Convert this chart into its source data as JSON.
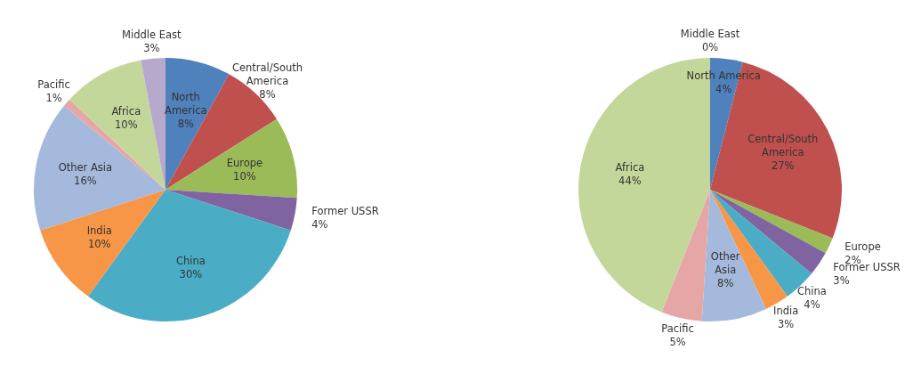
{
  "chart_data": [
    {
      "type": "pie",
      "categories": [
        "North America",
        "Central/South America",
        "Europe",
        "Former USSR",
        "China",
        "India",
        "Other Asia",
        "Pacific",
        "Africa",
        "Middle East"
      ],
      "values": [
        8,
        8,
        10,
        4,
        30,
        10,
        16,
        1,
        10,
        3
      ],
      "value_labels": [
        "8%",
        "8%",
        "10%",
        "4%",
        "30%",
        "10%",
        "16%",
        "1%",
        "10%",
        "3%"
      ],
      "colors": [
        "#4f81bd",
        "#c0504d",
        "#9bbb59",
        "#8064a2",
        "#4bacc6",
        "#f79646",
        "#a5b9dc",
        "#e6a6a6",
        "#c4d79b",
        "#b7a9cc"
      ]
    },
    {
      "type": "pie",
      "categories": [
        "North America",
        "Central/South America",
        "Europe",
        "Former USSR",
        "China",
        "India",
        "Other Asia",
        "Pacific",
        "Africa",
        "Middle East"
      ],
      "values": [
        4,
        27,
        2,
        3,
        4,
        3,
        8,
        5,
        44,
        0
      ],
      "value_labels": [
        "4%",
        "27%",
        "2%",
        "3%",
        "4%",
        "3%",
        "8%",
        "5%",
        "44%",
        "0%"
      ],
      "colors": [
        "#4f81bd",
        "#c0504d",
        "#9bbb59",
        "#8064a2",
        "#4bacc6",
        "#f79646",
        "#a5b9dc",
        "#e6a6a6",
        "#c4d79b",
        "#b7a9cc"
      ]
    }
  ]
}
